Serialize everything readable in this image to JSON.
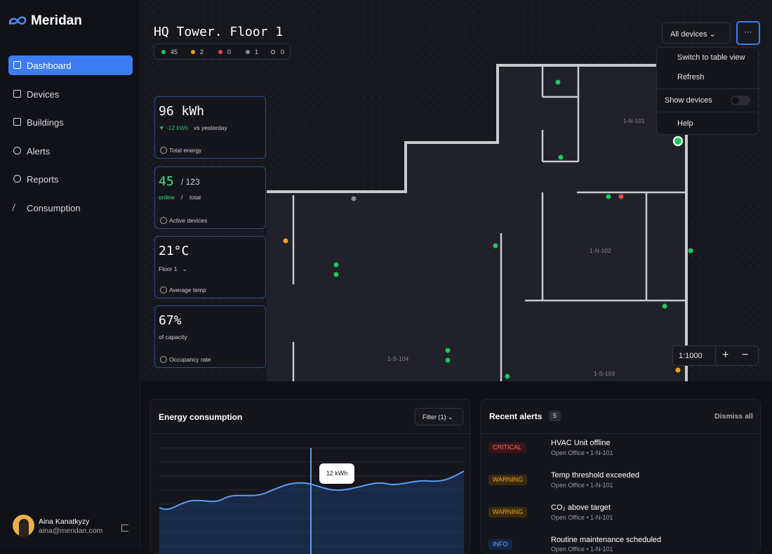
{
  "sidebar": {
    "brand": "Meridan",
    "nav": [
      "Dashboard",
      "Devices",
      "Buildings",
      "Alerts",
      "Reports",
      "Consumption"
    ],
    "user": {
      "name": "Aina Kanatkyzy",
      "email": "aina@meridan.com"
    }
  },
  "header": {
    "title": "HQ Tower. Floor 1",
    "status_counts": [
      "45",
      "2",
      "0",
      "1",
      "0"
    ],
    "device_filter": "All devices",
    "more": "···",
    "menu": [
      "Switch to table view",
      "Refresh",
      "Show devices",
      "Help"
    ]
  },
  "cards": [
    {
      "value": "96 kWh",
      "delta": "-12 kWh",
      "note": "vs yesterday",
      "label": "Total energy"
    },
    {
      "value": "45",
      "total": "/ 123",
      "online": "online",
      "sep": "/",
      "total_label": "total",
      "label": "Active devices"
    },
    {
      "value": "21°C",
      "floor": "Floor 1",
      "label": "Average temp"
    },
    {
      "value": "67%",
      "note": "of capacity",
      "label": "Occupancy rate"
    }
  ],
  "map": {
    "rooms": [
      "1-N-101",
      "1-N-102",
      "1-S-104",
      "1-S-103"
    ],
    "scale": "1:1000",
    "zoom_in": "+",
    "zoom_out": "−"
  },
  "energy": {
    "title": "Energy consumption",
    "filter": "Filter (1)",
    "tooltip": "12 kWh"
  },
  "alerts": {
    "title": "Recent alerts",
    "count": "5",
    "dismiss": "Dismiss all",
    "items": [
      {
        "level": "CRITICAL",
        "title": "HVAC Unit offline",
        "location": "Open Office • 1-N-101"
      },
      {
        "level": "WARNING",
        "title": "Temp threshold exceeded",
        "location": "Open Office • 1-N-101"
      },
      {
        "level": "WARNING",
        "title": "CO₂ above target",
        "location": "Open Office • 1-N-101"
      },
      {
        "level": "INFO",
        "title": "Routine maintenance scheduled",
        "location": "Open Office • 1-N-101"
      }
    ]
  }
}
